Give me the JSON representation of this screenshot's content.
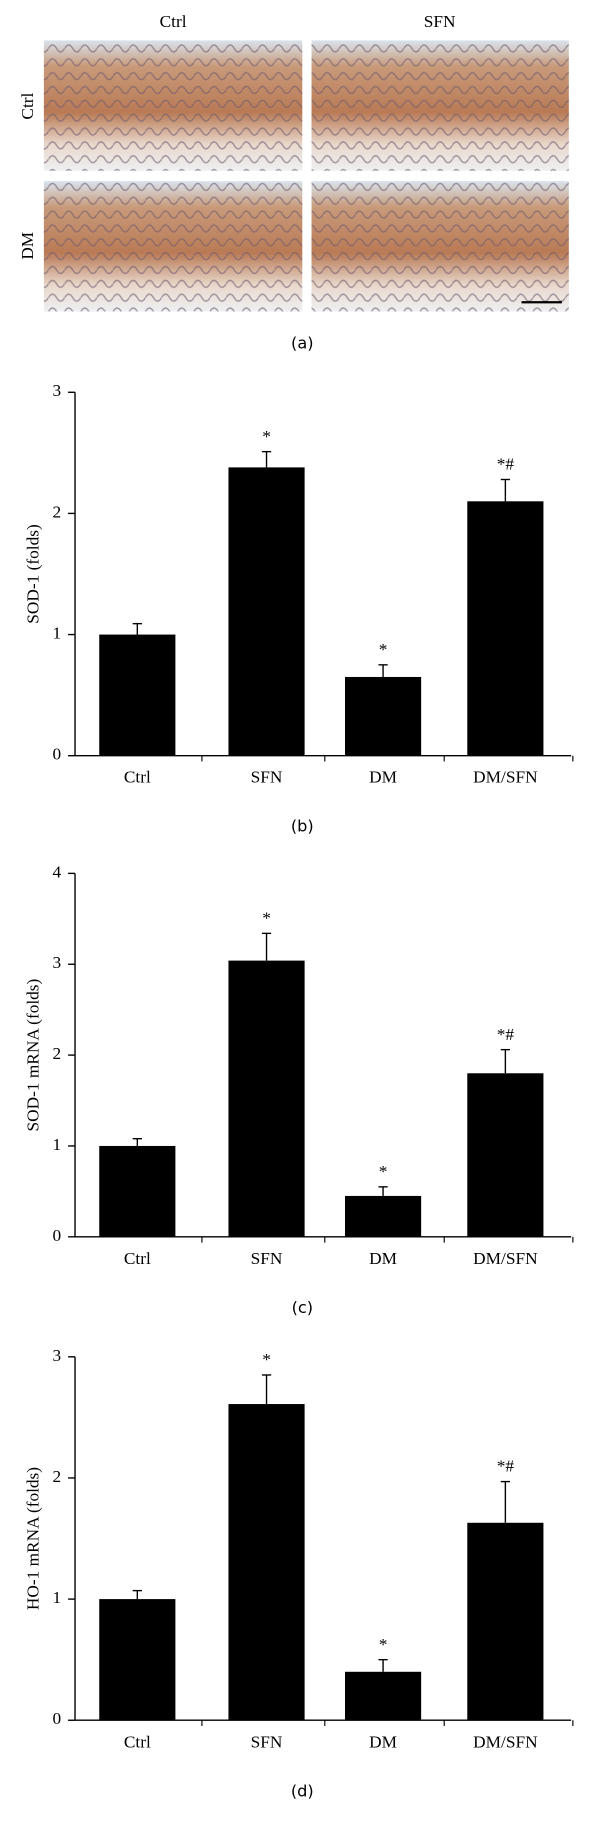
{
  "panel_a": {
    "column_labels": [
      "Ctrl",
      "SFN"
    ],
    "row_labels": [
      "Ctrl",
      "DM"
    ],
    "caption": "(a)"
  },
  "chart_data": [
    {
      "type": "bar",
      "caption": "(b)",
      "y_label": "SOD-1 (folds)",
      "categories": [
        "Ctrl",
        "SFN",
        "DM",
        "DM/SFN"
      ],
      "values": [
        1.0,
        2.38,
        0.65,
        2.1
      ],
      "errors": [
        0.09,
        0.13,
        0.1,
        0.18
      ],
      "annotations": [
        null,
        "*",
        "*",
        "*#"
      ],
      "color": "#000000",
      "ylim": [
        0,
        3
      ],
      "yticks": [
        0,
        1,
        2,
        3
      ]
    },
    {
      "type": "bar",
      "caption": "(c)",
      "y_label": "SOD-1 mRNA (folds)",
      "categories": [
        "Ctrl",
        "SFN",
        "DM",
        "DM/SFN"
      ],
      "values": [
        1.0,
        3.04,
        0.45,
        1.8
      ],
      "errors": [
        0.08,
        0.3,
        0.1,
        0.26
      ],
      "annotations": [
        null,
        "*",
        "*",
        "*#"
      ],
      "color": "#000000",
      "ylim": [
        0,
        4
      ],
      "yticks": [
        0,
        1,
        2,
        3,
        4
      ]
    },
    {
      "type": "bar",
      "caption": "(d)",
      "y_label": "HO-1 mRNA (folds)",
      "categories": [
        "Ctrl",
        "SFN",
        "DM",
        "DM/SFN"
      ],
      "values": [
        1.0,
        2.61,
        0.4,
        1.63
      ],
      "errors": [
        0.07,
        0.24,
        0.1,
        0.34
      ],
      "annotations": [
        null,
        "*",
        "*",
        "*#"
      ],
      "color": "#000000",
      "ylim": [
        0,
        3
      ],
      "yticks": [
        0,
        1,
        2,
        3
      ]
    }
  ]
}
